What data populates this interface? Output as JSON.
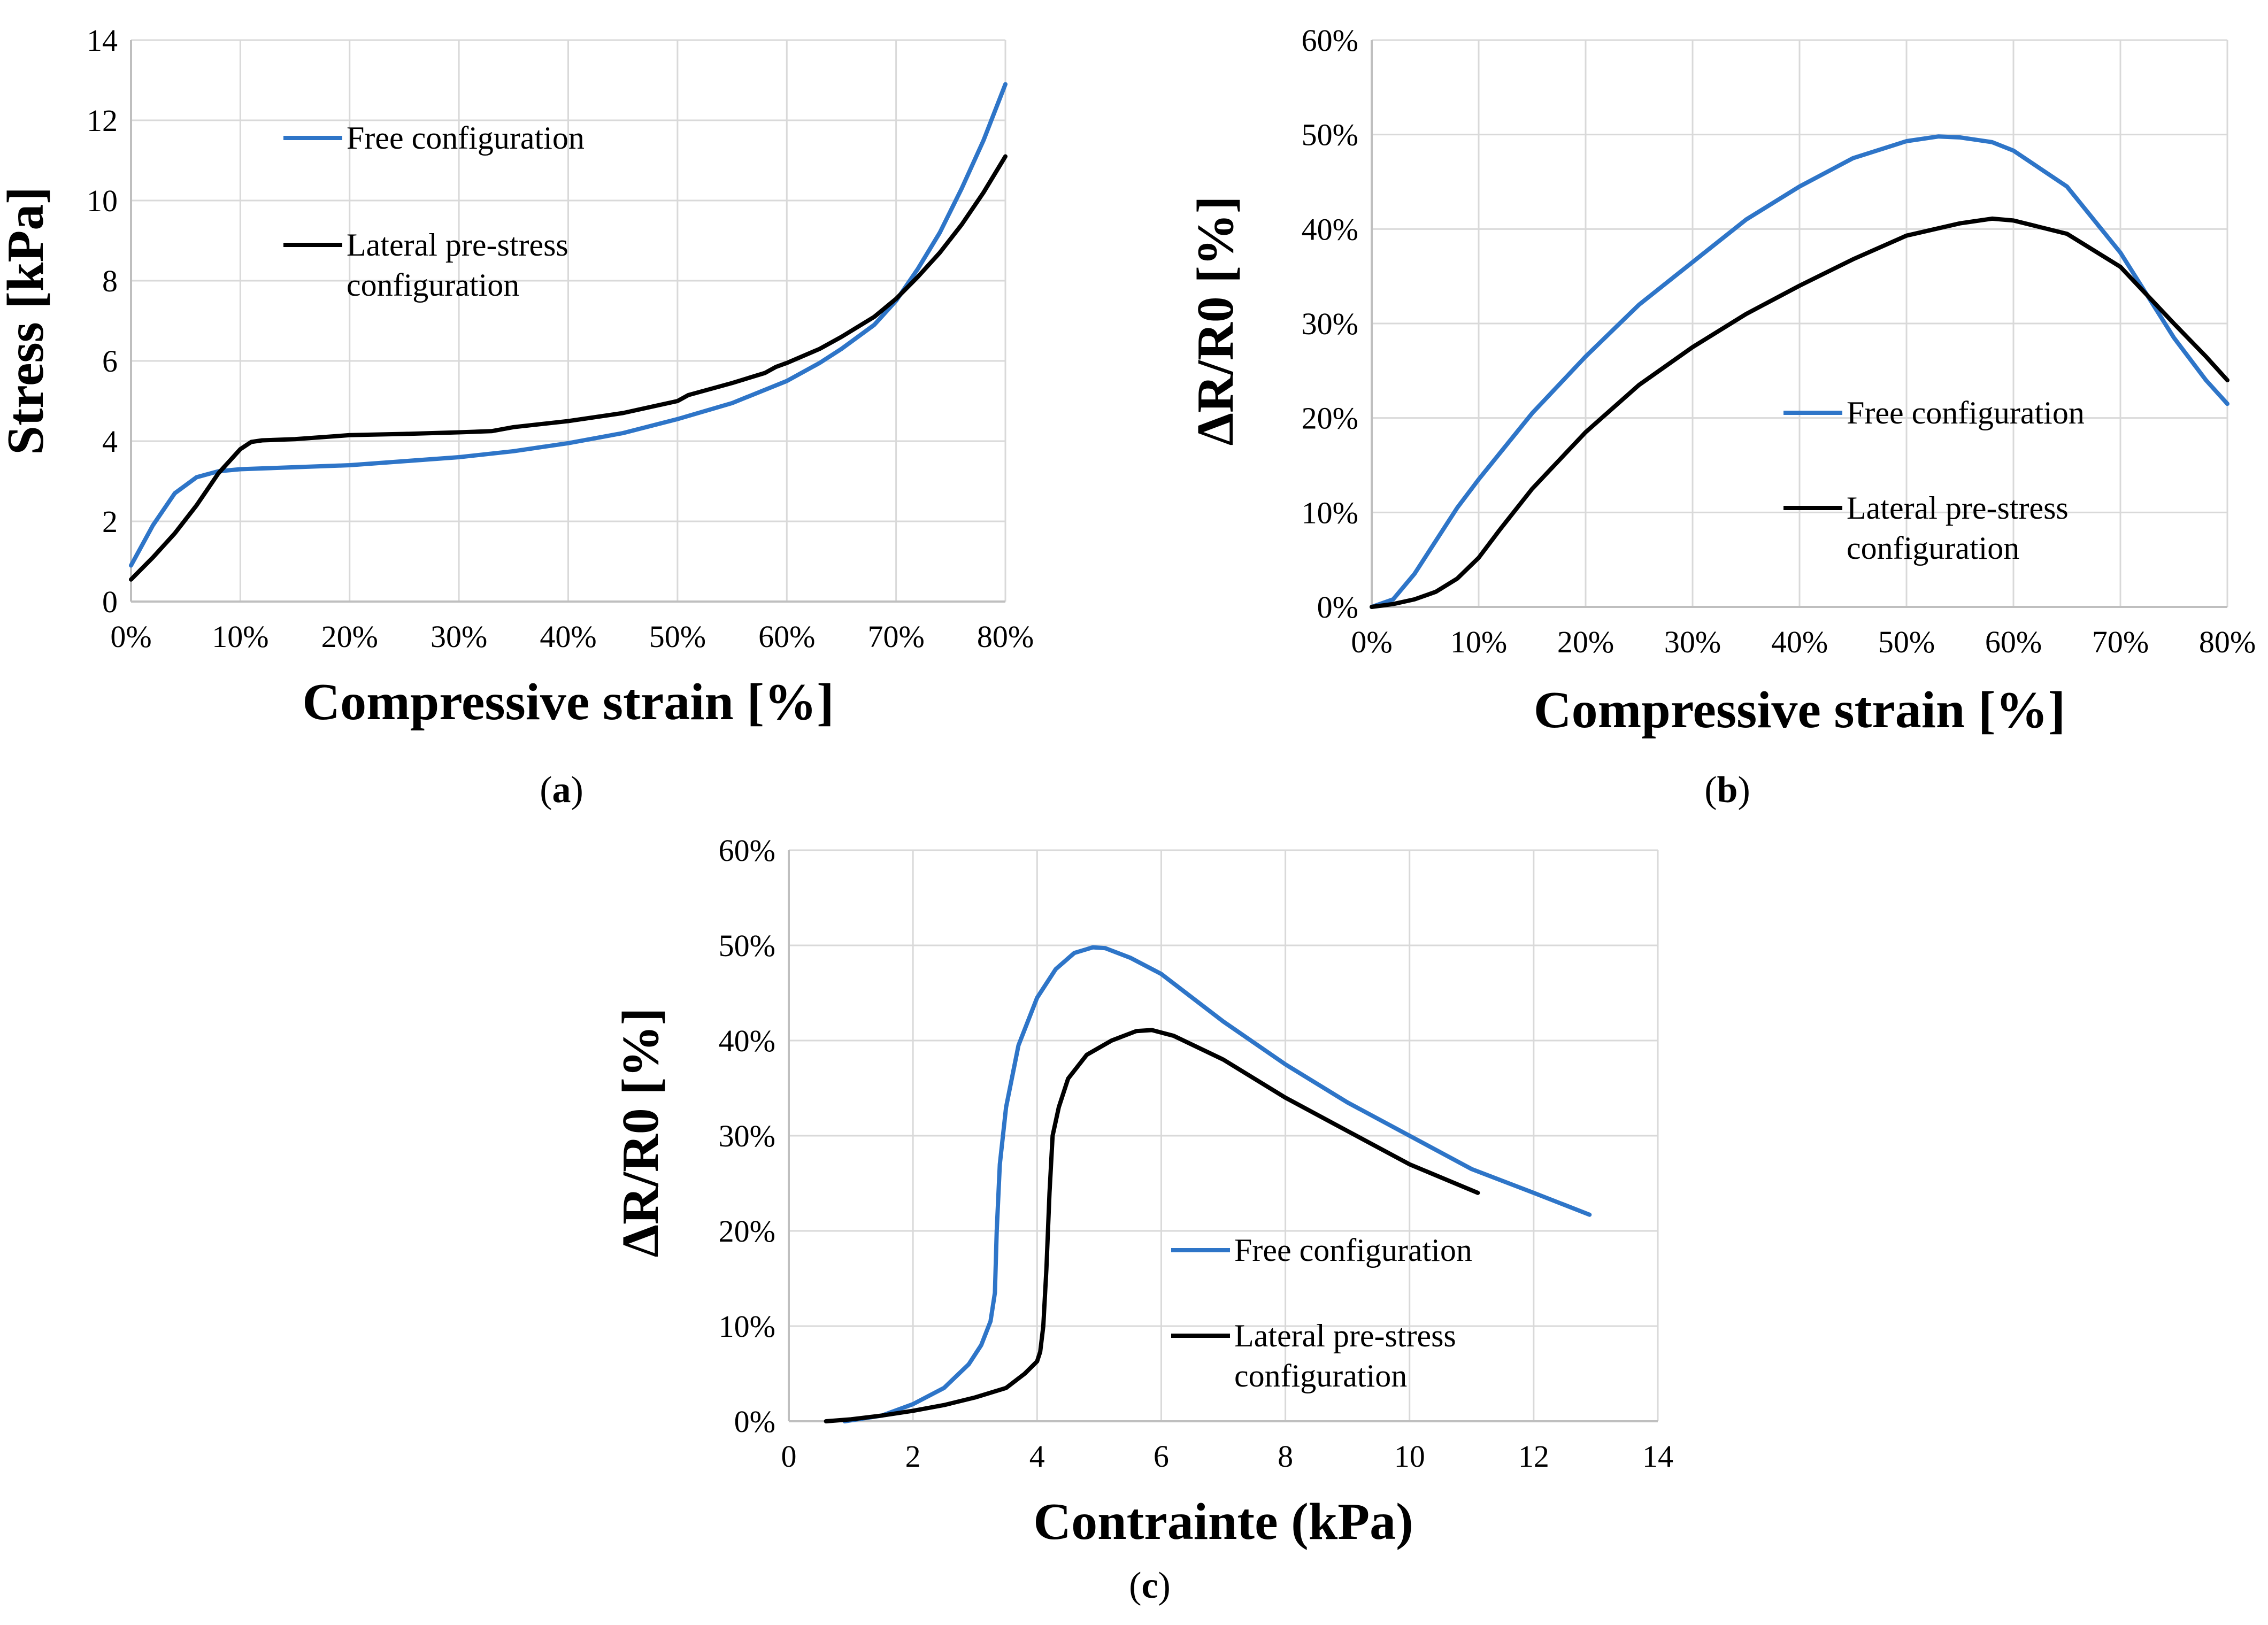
{
  "colors": {
    "free": "#2e75c8",
    "lateral": "#000000"
  },
  "chart_data": [
    {
      "panel": "(a)",
      "type": "line",
      "xlabel": "Compressive strain [%]",
      "ylabel": "Stress [kPa]",
      "xlim": [
        0,
        80
      ],
      "ylim": [
        0,
        14
      ],
      "xticks": [
        0,
        10,
        20,
        30,
        40,
        50,
        60,
        70,
        80
      ],
      "xtick_labels": [
        "0%",
        "10%",
        "20%",
        "30%",
        "40%",
        "50%",
        "60%",
        "70%",
        "80%"
      ],
      "yticks": [
        0,
        2,
        4,
        6,
        8,
        10,
        12,
        14
      ],
      "ytick_labels": [
        "0",
        "2",
        "4",
        "6",
        "8",
        "10",
        "12",
        "14"
      ],
      "legend_position": "upper-left",
      "series": [
        {
          "name": "Free configuration",
          "color_key": "free",
          "x": [
            0,
            2,
            4,
            6,
            8,
            10,
            12,
            15,
            20,
            25,
            30,
            35,
            40,
            45,
            50,
            55,
            60,
            63,
            65,
            68,
            70,
            72,
            74,
            76,
            78,
            80
          ],
          "y": [
            0.9,
            1.9,
            2.7,
            3.1,
            3.25,
            3.3,
            3.32,
            3.35,
            3.4,
            3.5,
            3.6,
            3.75,
            3.95,
            4.2,
            4.55,
            4.95,
            5.5,
            5.95,
            6.3,
            6.9,
            7.5,
            8.3,
            9.2,
            10.3,
            11.5,
            12.9
          ]
        },
        {
          "name": "Lateral pre-stress configuration",
          "color_key": "lateral",
          "x": [
            0,
            2,
            4,
            6,
            8,
            10,
            11,
            12,
            15,
            20,
            25,
            30,
            33,
            35,
            40,
            45,
            50,
            51,
            55,
            58,
            59,
            60,
            63,
            65,
            68,
            70,
            72,
            74,
            76,
            78,
            80
          ],
          "y": [
            0.55,
            1.1,
            1.7,
            2.4,
            3.2,
            3.8,
            3.98,
            4.02,
            4.05,
            4.15,
            4.18,
            4.22,
            4.25,
            4.35,
            4.5,
            4.7,
            5.0,
            5.15,
            5.45,
            5.7,
            5.85,
            5.95,
            6.3,
            6.6,
            7.1,
            7.55,
            8.1,
            8.7,
            9.4,
            10.2,
            11.1
          ]
        }
      ]
    },
    {
      "panel": "(b)",
      "type": "line",
      "xlabel": "Compressive strain [%]",
      "ylabel": "ΔR/R0 [%]",
      "xlim": [
        0,
        80
      ],
      "ylim": [
        0,
        60
      ],
      "xticks": [
        0,
        10,
        20,
        30,
        40,
        50,
        60,
        70,
        80
      ],
      "xtick_labels": [
        "0%",
        "10%",
        "20%",
        "30%",
        "40%",
        "50%",
        "60%",
        "70%",
        "80%"
      ],
      "yticks": [
        0,
        10,
        20,
        30,
        40,
        50,
        60
      ],
      "ytick_labels": [
        "0%",
        "10%",
        "20%",
        "30%",
        "40%",
        "50%",
        "60%"
      ],
      "legend_position": "lower-right",
      "series": [
        {
          "name": "Free configuration",
          "color_key": "free",
          "x": [
            0,
            2,
            4,
            6,
            8,
            10,
            15,
            20,
            25,
            30,
            35,
            40,
            45,
            50,
            53,
            55,
            58,
            60,
            65,
            70,
            75,
            78,
            80
          ],
          "y": [
            0,
            0.8,
            3.5,
            7,
            10.5,
            13.5,
            20.5,
            26.5,
            32,
            36.5,
            41,
            44.5,
            47.5,
            49.3,
            49.8,
            49.7,
            49.2,
            48.3,
            44.5,
            37.5,
            28.5,
            24,
            21.5
          ]
        },
        {
          "name": "Lateral pre-stress configuration",
          "color_key": "lateral",
          "x": [
            0,
            2,
            4,
            6,
            8,
            10,
            12,
            15,
            20,
            25,
            30,
            35,
            40,
            45,
            50,
            55,
            58,
            60,
            65,
            70,
            75,
            78,
            80
          ],
          "y": [
            0,
            0.3,
            0.8,
            1.6,
            3,
            5.2,
            8.2,
            12.5,
            18.5,
            23.5,
            27.5,
            31,
            34,
            36.8,
            39.3,
            40.6,
            41.1,
            40.9,
            39.5,
            36,
            30,
            26.5,
            24
          ]
        }
      ]
    },
    {
      "panel": "(c)",
      "type": "line",
      "xlabel": "Contrainte (kPa)",
      "ylabel": "ΔR/R0 [%]",
      "xlim": [
        0,
        14
      ],
      "ylim": [
        0,
        60
      ],
      "xticks": [
        0,
        2,
        4,
        6,
        8,
        10,
        12,
        14
      ],
      "xtick_labels": [
        "0",
        "2",
        "4",
        "6",
        "8",
        "10",
        "12",
        "14"
      ],
      "yticks": [
        0,
        10,
        20,
        30,
        40,
        50,
        60
      ],
      "ytick_labels": [
        "0%",
        "10%",
        "20%",
        "30%",
        "40%",
        "50%",
        "60%"
      ],
      "legend_position": "lower-right",
      "series": [
        {
          "name": "Free configuration",
          "color_key": "free",
          "x": [
            0.9,
            1.5,
            2.0,
            2.5,
            2.9,
            3.1,
            3.25,
            3.32,
            3.35,
            3.4,
            3.5,
            3.7,
            4.0,
            4.3,
            4.6,
            4.9,
            5.1,
            5.5,
            6.0,
            7.0,
            8.0,
            9.0,
            10.0,
            11.0,
            12.0,
            12.9
          ],
          "y": [
            0,
            0.6,
            1.8,
            3.5,
            6,
            8,
            10.5,
            13.5,
            20,
            27,
            33,
            39.5,
            44.5,
            47.5,
            49.2,
            49.8,
            49.7,
            48.7,
            47,
            42,
            37.5,
            33.5,
            30,
            26.5,
            24,
            21.7
          ]
        },
        {
          "name": "Lateral pre-stress configuration",
          "color_key": "lateral",
          "x": [
            0.6,
            1.0,
            1.5,
            2.0,
            2.5,
            3.0,
            3.5,
            3.8,
            4.0,
            4.05,
            4.1,
            4.15,
            4.2,
            4.25,
            4.35,
            4.5,
            4.8,
            5.2,
            5.6,
            5.85,
            6.2,
            7.0,
            8.0,
            9.0,
            10.0,
            11.1
          ],
          "y": [
            0,
            0.2,
            0.6,
            1.1,
            1.7,
            2.5,
            3.5,
            5,
            6.3,
            7.3,
            10,
            16,
            24,
            30,
            33,
            36,
            38.5,
            40,
            41,
            41.1,
            40.5,
            38,
            34,
            30.5,
            27,
            24
          ]
        }
      ]
    }
  ]
}
